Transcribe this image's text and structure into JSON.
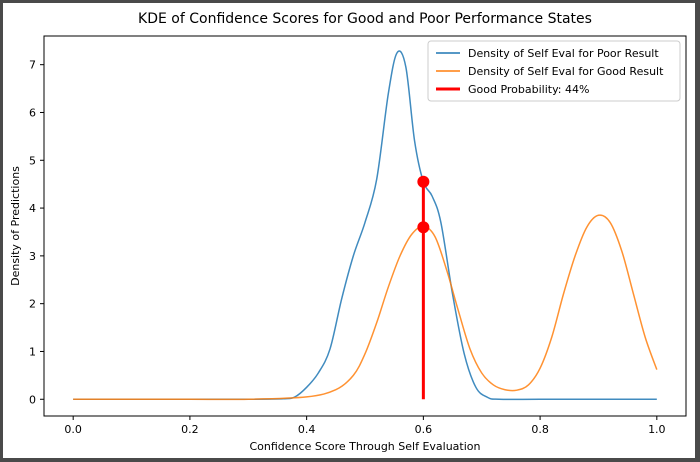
{
  "chart_data": {
    "type": "line",
    "title": "KDE of Confidence Scores for Good and Poor Performance States",
    "xlabel": "Confidence Score Through Self Evaluation",
    "ylabel": "Density of Predictions",
    "xlim": [
      -0.05,
      1.05
    ],
    "ylim": [
      -0.35,
      7.6
    ],
    "xticks": [
      0.0,
      0.2,
      0.4,
      0.6,
      0.8,
      1.0
    ],
    "xtick_labels": [
      "0.0",
      "0.2",
      "0.4",
      "0.6",
      "0.8",
      "1.0"
    ],
    "yticks": [
      0,
      1,
      2,
      3,
      4,
      5,
      6,
      7
    ],
    "ytick_labels": [
      "0",
      "1",
      "2",
      "3",
      "4",
      "5",
      "6",
      "7"
    ],
    "legend_position": "top-right",
    "series": [
      {
        "name": "Density of Self Eval for Poor Result",
        "color": "#1f77b4",
        "x": [
          0.0,
          0.1,
          0.2,
          0.3,
          0.36,
          0.38,
          0.4,
          0.42,
          0.44,
          0.46,
          0.48,
          0.5,
          0.52,
          0.54,
          0.555,
          0.57,
          0.585,
          0.6,
          0.615,
          0.63,
          0.65,
          0.67,
          0.69,
          0.71,
          0.73,
          0.8,
          0.9,
          1.0
        ],
        "y": [
          0.0,
          0.0,
          0.0,
          0.0,
          0.01,
          0.05,
          0.25,
          0.55,
          1.05,
          2.1,
          3.0,
          3.7,
          4.6,
          6.4,
          7.25,
          6.95,
          5.4,
          4.55,
          4.25,
          3.7,
          2.2,
          0.95,
          0.25,
          0.04,
          0.0,
          0.0,
          0.0,
          0.0
        ]
      },
      {
        "name": "Density of Self Eval for Good Result",
        "color": "#ff7f0e",
        "x": [
          0.0,
          0.1,
          0.2,
          0.3,
          0.4,
          0.45,
          0.48,
          0.5,
          0.52,
          0.54,
          0.56,
          0.58,
          0.6,
          0.62,
          0.64,
          0.66,
          0.68,
          0.7,
          0.72,
          0.74,
          0.76,
          0.78,
          0.8,
          0.82,
          0.84,
          0.86,
          0.88,
          0.9,
          0.92,
          0.94,
          0.96,
          0.98,
          1.0
        ],
        "y": [
          0.0,
          0.0,
          0.0,
          0.0,
          0.05,
          0.2,
          0.5,
          0.95,
          1.6,
          2.35,
          3.0,
          3.45,
          3.62,
          3.4,
          2.7,
          1.85,
          1.05,
          0.55,
          0.3,
          0.2,
          0.19,
          0.3,
          0.65,
          1.3,
          2.2,
          3.0,
          3.6,
          3.85,
          3.7,
          3.1,
          2.2,
          1.3,
          0.62
        ]
      }
    ],
    "marker_line": {
      "name": "Good Probability: 44%",
      "color": "#ff0000",
      "x": 0.6,
      "y_bottom": 0,
      "y_top": 4.55,
      "points": [
        4.55,
        3.6
      ]
    }
  }
}
